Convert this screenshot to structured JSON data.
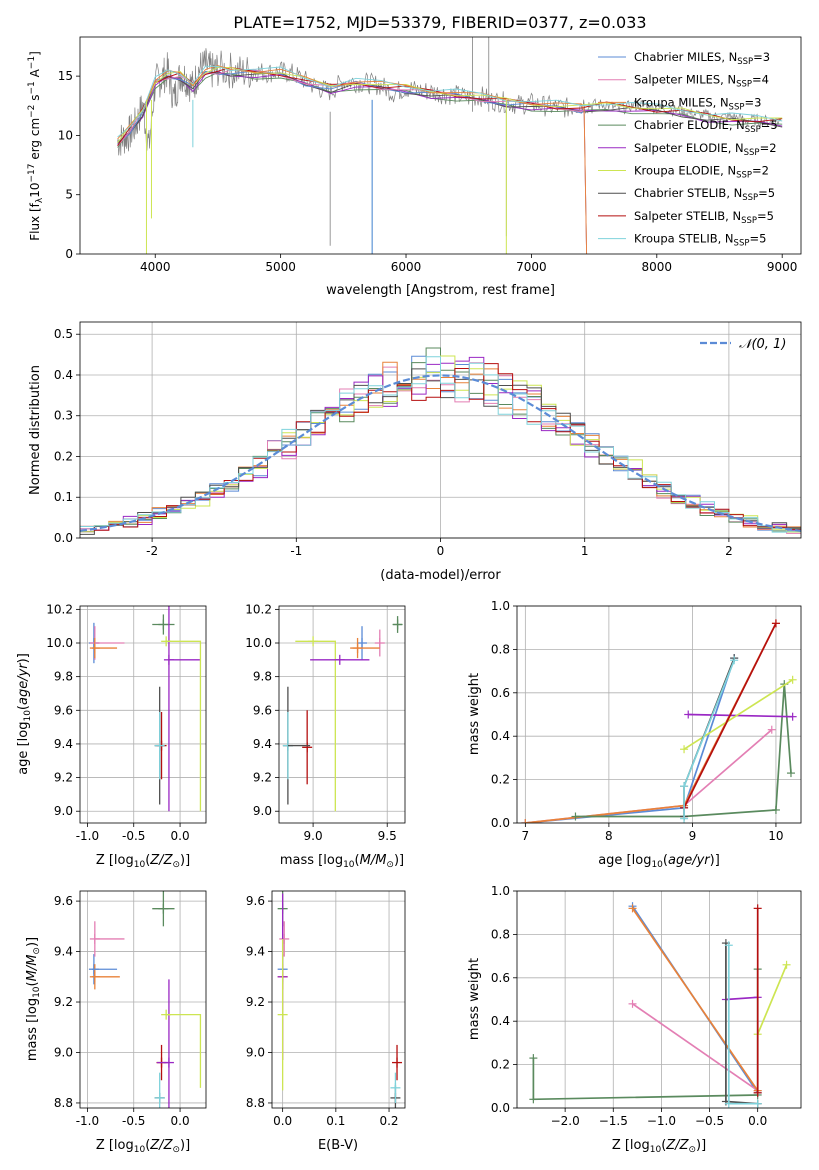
{
  "figure": {
    "title": "PLATE=1752, MJD=53379, FIBERID=0377, z=0.033"
  },
  "colors": {
    "chabrier_miles": "#5b8bd6",
    "salpeter_miles": "#e37fb4",
    "kroupa_miles": "#e8823a",
    "chabrier_elodie": "#5a8a5e",
    "salpeter_elodie": "#9a28c4",
    "kroupa_elodie": "#cde552",
    "chabrier_stelib": "#4f4f4f",
    "salpeter_stelib": "#b50f0f",
    "kroupa_stelib": "#7fd2db",
    "normal_curve": "#5b8bd6",
    "grid": "#b0b0b0"
  },
  "chart_data": [
    {
      "id": "spectrum",
      "type": "line",
      "title": "PLATE=1752, MJD=53379, FIBERID=0377, z=0.033",
      "xlabel": "wavelength [Angstrom, rest frame]",
      "ylabel": "Flux [f_λ10^-17 erg cm^-2 s^-1 A^-1]",
      "xlim": [
        3400,
        9150
      ],
      "ylim": [
        0,
        18.3
      ],
      "xticks": [
        4000,
        5000,
        6000,
        7000,
        8000,
        9000
      ],
      "yticks": [
        0,
        5,
        10,
        15
      ],
      "grid": false,
      "legend_position": "top-right",
      "legend": [
        {
          "label": "Chabrier MILES, N",
          "sub": "SSP",
          "value": "=3",
          "color": "chabrier_miles"
        },
        {
          "label": "Salpeter MILES, N",
          "sub": "SSP",
          "value": "=4",
          "color": "salpeter_miles"
        },
        {
          "label": "Kroupa MILES, N",
          "sub": "SSP",
          "value": "=3",
          "color": "kroupa_miles"
        },
        {
          "label": "Chabrier ELODIE, N",
          "sub": "SSP",
          "value": "=5",
          "color": "chabrier_elodie"
        },
        {
          "label": "Salpeter ELODIE, N",
          "sub": "SSP",
          "value": "=2",
          "color": "salpeter_elodie"
        },
        {
          "label": "Kroupa ELODIE, N",
          "sub": "SSP",
          "value": "=2",
          "color": "kroupa_elodie"
        },
        {
          "label": "Chabrier STELIB, N",
          "sub": "SSP",
          "value": "=5",
          "color": "chabrier_stelib"
        },
        {
          "label": "Salpeter STELIB, N",
          "sub": "SSP",
          "value": "=5",
          "color": "salpeter_stelib"
        },
        {
          "label": "Kroupa STELIB, N",
          "sub": "SSP",
          "value": "=5",
          "color": "kroupa_stelib"
        }
      ],
      "data_series": {
        "name": "data",
        "color": "#808080",
        "x": [
          3700,
          3750,
          3800,
          3850,
          3900,
          3950,
          4000,
          4050,
          4100,
          4150,
          4200,
          4250,
          4300,
          4350,
          4400,
          4450,
          4500,
          4600,
          4700,
          4800,
          4900,
          5000,
          5100,
          5200,
          5300,
          5400,
          5500,
          5600,
          5700,
          5800,
          5900,
          6000,
          6100,
          6200,
          6300,
          6400,
          6500,
          6600,
          6700,
          6800,
          6900,
          7000,
          7100,
          7200,
          7300,
          7400,
          7500,
          7600,
          7700,
          7800,
          7900,
          8000,
          8100,
          8200,
          8300,
          8400,
          8500,
          8600,
          8700,
          8800,
          8900,
          9000
        ],
        "y": [
          9.5,
          9.8,
          10.2,
          11.0,
          12.5,
          9.0,
          14.5,
          14.8,
          15.5,
          13.0,
          15.2,
          14.8,
          14.0,
          15.6,
          15.9,
          15.4,
          15.6,
          15.5,
          15.3,
          15.4,
          15.3,
          15.4,
          15.2,
          14.6,
          14.0,
          13.7,
          14.6,
          14.5,
          14.4,
          14.2,
          13.6,
          14.0,
          13.8,
          13.7,
          13.5,
          13.4,
          13.2,
          13.3,
          12.9,
          12.8,
          12.6,
          12.7,
          12.5,
          12.4,
          12.3,
          12.7,
          12.6,
          12.6,
          12.2,
          12.5,
          12.6,
          12.3,
          12.2,
          12.0,
          11.8,
          11.7,
          11.5,
          11.6,
          11.3,
          11.3,
          11.2,
          11.2
        ]
      },
      "model_series": {
        "name": "models",
        "x": [
          3700,
          3800,
          3900,
          4000,
          4100,
          4200,
          4300,
          4400,
          4500,
          4600,
          4800,
          5000,
          5200,
          5400,
          5600,
          5800,
          6000,
          6200,
          6400,
          6600,
          6800,
          7000,
          7200,
          7400,
          7600,
          7800,
          8000,
          8200,
          8400,
          8600,
          8800,
          9000
        ],
        "y": [
          9.3,
          10.5,
          12.0,
          14.5,
          15.0,
          15.0,
          14.2,
          15.3,
          15.4,
          15.4,
          15.3,
          15.2,
          14.5,
          14.0,
          14.4,
          14.1,
          13.9,
          13.6,
          13.4,
          13.1,
          12.8,
          12.6,
          12.4,
          12.2,
          12.5,
          12.4,
          12.1,
          11.9,
          11.6,
          11.4,
          11.2,
          11.1
        ]
      }
    },
    {
      "id": "residuals",
      "type": "line",
      "xlabel": "(data-model)/error",
      "ylabel": "Normed distribution",
      "xlim": [
        -2.5,
        2.5
      ],
      "ylim": [
        0,
        0.53
      ],
      "xticks": [
        -2,
        -1,
        0,
        1,
        2
      ],
      "yticks": [
        0.0,
        0.1,
        0.2,
        0.3,
        0.4,
        0.5
      ],
      "grid": true,
      "legend_position": "top-right",
      "legend": [
        {
          "label": "𝒩(0, 1)",
          "color": "normal_curve"
        }
      ],
      "bin_edges_start": -2.5,
      "bin_width": 0.1,
      "reference_curve": "gaussian mean 0 sigma 1",
      "series": [
        {
          "name": "Chabrier MILES",
          "color": "chabrier_miles"
        },
        {
          "name": "Salpeter MILES",
          "color": "salpeter_miles"
        },
        {
          "name": "Kroupa MILES",
          "color": "kroupa_miles"
        },
        {
          "name": "Chabrier ELODIE",
          "color": "chabrier_elodie"
        },
        {
          "name": "Salpeter ELODIE",
          "color": "salpeter_elodie"
        },
        {
          "name": "Kroupa ELODIE",
          "color": "kroupa_elodie"
        },
        {
          "name": "Chabrier STELIB",
          "color": "chabrier_stelib"
        },
        {
          "name": "Salpeter STELIB",
          "color": "salpeter_stelib"
        },
        {
          "name": "Kroupa STELIB",
          "color": "kroupa_stelib"
        }
      ]
    },
    {
      "id": "age-vs-Z",
      "type": "scatter",
      "xlabel": "Z [log10(Z/Z☉)]",
      "ylabel": "age  [log10(age/yr)]",
      "xlim": [
        -1.08,
        0.28
      ],
      "ylim": [
        8.93,
        10.22
      ],
      "xticks": [
        -1.0,
        -0.5,
        0.0
      ],
      "yticks": [
        9.0,
        9.2,
        9.4,
        9.6,
        9.8,
        10.0,
        10.2
      ],
      "grid": true,
      "points": [
        {
          "x": -0.93,
          "y": 10.0,
          "xerr": 0.0,
          "yerr": 0.12,
          "color": "chabrier_miles"
        },
        {
          "x": -0.92,
          "y": 10.0,
          "xerr": 0.0,
          "yerr": 0.1,
          "color": "salpeter_miles"
        },
        {
          "x": -0.92,
          "y": 9.97,
          "xerr": 0.0,
          "yerr": 0.06,
          "color": "kroupa_miles"
        },
        {
          "x": -0.18,
          "y": 10.11,
          "xerr": 0.12,
          "yerr": 0.06,
          "color": "chabrier_elodie"
        },
        {
          "x": -0.12,
          "y": 9.9,
          "xerr": 0.0,
          "yerr": 0.9,
          "color": "salpeter_elodie"
        },
        {
          "x": -0.15,
          "y": 10.01,
          "xerr": 0.0,
          "yerr": 0.0,
          "color": "kroupa_elodie"
        },
        {
          "x": -0.22,
          "y": 9.39,
          "xerr": 0.0,
          "yerr": 0.35,
          "color": "chabrier_stelib"
        },
        {
          "x": -0.2,
          "y": 9.39,
          "xerr": 0.0,
          "yerr": 0.2,
          "color": "salpeter_stelib"
        },
        {
          "x": -0.22,
          "y": 9.39,
          "xerr": 0.0,
          "yerr": 0.2,
          "color": "kroupa_stelib"
        }
      ]
    },
    {
      "id": "age-vs-mass",
      "type": "scatter",
      "xlabel": "mass [log10(M/M☉)]",
      "ylabel": "",
      "xlim": [
        8.77,
        9.62
      ],
      "ylim": [
        8.93,
        10.22
      ],
      "xticks": [
        9.0,
        9.5
      ],
      "yticks": [
        9.0,
        9.2,
        9.4,
        9.6,
        9.8,
        10.0,
        10.2
      ],
      "grid": true,
      "points": [
        {
          "x": 9.33,
          "y": 10.0,
          "xerr": 0.0,
          "yerr": 0.1,
          "color": "chabrier_miles"
        },
        {
          "x": 9.45,
          "y": 10.0,
          "xerr": 0.0,
          "yerr": 0.08,
          "color": "salpeter_miles"
        },
        {
          "x": 9.3,
          "y": 9.97,
          "xerr": 0.0,
          "yerr": 0.06,
          "color": "kroupa_miles"
        },
        {
          "x": 9.57,
          "y": 10.11,
          "xerr": 0.03,
          "yerr": 0.05,
          "color": "chabrier_elodie"
        },
        {
          "x": 9.18,
          "y": 9.9,
          "xerr": 0.0,
          "yerr": 0.0,
          "color": "salpeter_elodie"
        },
        {
          "x": 9.0,
          "y": 10.01,
          "xerr": 0.0,
          "yerr": 0.0,
          "color": "kroupa_elodie"
        },
        {
          "x": 8.83,
          "y": 9.39,
          "xerr": 0.0,
          "yerr": 0.35,
          "color": "chabrier_stelib"
        },
        {
          "x": 8.96,
          "y": 9.38,
          "xerr": 0.0,
          "yerr": 0.22,
          "color": "salpeter_stelib"
        },
        {
          "x": 8.83,
          "y": 9.39,
          "xerr": 0.0,
          "yerr": 0.2,
          "color": "kroupa_stelib"
        }
      ]
    },
    {
      "id": "weight-vs-age",
      "type": "line",
      "xlabel": "age  [log10(age/yr)]",
      "ylabel": "mass weight",
      "xlim": [
        6.9,
        10.3
      ],
      "ylim": [
        0,
        1.0
      ],
      "xticks": [
        7,
        8,
        9,
        10
      ],
      "yticks": [
        0.0,
        0.2,
        0.4,
        0.6,
        0.8,
        1.0
      ],
      "grid": true,
      "series": [
        {
          "name": "Chabrier MILES",
          "color": "chabrier_miles",
          "x": [
            7.0,
            8.9,
            9.5
          ],
          "y": [
            0.0,
            0.07,
            0.76
          ]
        },
        {
          "name": "Salpeter MILES",
          "color": "salpeter_miles",
          "x": [
            7.0,
            8.9,
            9.95
          ],
          "y": [
            0.0,
            0.08,
            0.43
          ]
        },
        {
          "name": "Kroupa MILES",
          "color": "kroupa_miles",
          "x": [
            7.0,
            8.9,
            10.0
          ],
          "y": [
            0.0,
            0.08,
            0.92
          ]
        },
        {
          "name": "Chabrier ELODIE",
          "color": "chabrier_elodie",
          "x": [
            7.6,
            8.9,
            10.0,
            10.1,
            10.18
          ],
          "y": [
            0.03,
            0.03,
            0.06,
            0.64,
            0.23
          ]
        },
        {
          "name": "Salpeter ELODIE",
          "color": "salpeter_elodie",
          "x": [
            8.95,
            10.2
          ],
          "y": [
            0.5,
            0.49
          ]
        },
        {
          "name": "Kroupa ELODIE",
          "color": "kroupa_elodie",
          "x": [
            8.9,
            10.2
          ],
          "y": [
            0.34,
            0.66
          ]
        },
        {
          "name": "Chabrier STELIB",
          "color": "chabrier_stelib",
          "x": [
            8.9,
            8.9,
            9.5
          ],
          "y": [
            0.03,
            0.17,
            0.76
          ]
        },
        {
          "name": "Salpeter STELIB",
          "color": "salpeter_stelib",
          "x": [
            8.9,
            10.0
          ],
          "y": [
            0.07,
            0.92
          ]
        },
        {
          "name": "Kroupa STELIB",
          "color": "kroupa_stelib",
          "x": [
            8.9,
            8.9,
            9.5
          ],
          "y": [
            0.02,
            0.17,
            0.75
          ]
        }
      ]
    },
    {
      "id": "mass-vs-Z",
      "type": "scatter",
      "xlabel": "Z [log10(Z/Z☉)]",
      "ylabel": "mass [log10(M/M☉)]",
      "xlim": [
        -1.08,
        0.28
      ],
      "ylim": [
        8.78,
        9.64
      ],
      "xticks": [
        -1.0,
        -0.5,
        0.0
      ],
      "yticks": [
        8.8,
        9.0,
        9.2,
        9.4,
        9.6
      ],
      "grid": true,
      "points": [
        {
          "x": -0.93,
          "y": 9.33,
          "xerr": 0.0,
          "yerr": 0.06,
          "color": "chabrier_miles"
        },
        {
          "x": -0.92,
          "y": 9.45,
          "xerr": 0.0,
          "yerr": 0.07,
          "color": "salpeter_miles"
        },
        {
          "x": -0.92,
          "y": 9.3,
          "xerr": 0.0,
          "yerr": 0.05,
          "color": "kroupa_miles"
        },
        {
          "x": -0.18,
          "y": 9.57,
          "xerr": 0.12,
          "yerr": 0.07,
          "color": "chabrier_elodie"
        },
        {
          "x": -0.12,
          "y": 8.96,
          "xerr": 0.0,
          "yerr": 0.33,
          "color": "salpeter_elodie"
        },
        {
          "x": -0.15,
          "y": 9.15,
          "xerr": 0.0,
          "yerr": 0.0,
          "color": "kroupa_elodie"
        },
        {
          "x": -0.22,
          "y": 8.82,
          "xerr": 0.0,
          "yerr": 0.0,
          "color": "chabrier_stelib"
        },
        {
          "x": -0.2,
          "y": 8.96,
          "xerr": 0.0,
          "yerr": 0.07,
          "color": "salpeter_stelib"
        },
        {
          "x": -0.22,
          "y": 8.82,
          "xerr": 0.0,
          "yerr": 0.1,
          "color": "kroupa_stelib"
        }
      ]
    },
    {
      "id": "mass-vs-ebv",
      "type": "scatter",
      "xlabel": "E(B-V)",
      "ylabel": "",
      "xlim": [
        -0.02,
        0.23
      ],
      "ylim": [
        8.78,
        9.64
      ],
      "xticks": [
        0.0,
        0.1,
        0.2
      ],
      "yticks": [
        8.8,
        9.0,
        9.2,
        9.4,
        9.6
      ],
      "grid": true,
      "points": [
        {
          "x": 0.0,
          "y": 9.33,
          "yerr": 0.06,
          "color": "chabrier_miles"
        },
        {
          "x": 0.003,
          "y": 9.45,
          "yerr": 0.07,
          "color": "salpeter_miles"
        },
        {
          "x": 0.0,
          "y": 9.3,
          "yerr": 0.05,
          "color": "kroupa_miles"
        },
        {
          "x": 0.0,
          "y": 9.57,
          "yerr": 0.07,
          "color": "chabrier_elodie"
        },
        {
          "x": 0.0,
          "y": 9.3,
          "yerr": 0.33,
          "color": "salpeter_elodie"
        },
        {
          "x": 0.0,
          "y": 9.15,
          "yerr": 0.3,
          "color": "kroupa_elodie"
        },
        {
          "x": 0.212,
          "y": 8.82,
          "yerr": 0.05,
          "color": "chabrier_stelib"
        },
        {
          "x": 0.215,
          "y": 8.96,
          "yerr": 0.07,
          "color": "salpeter_stelib"
        },
        {
          "x": 0.212,
          "y": 8.86,
          "yerr": 0.06,
          "color": "kroupa_stelib"
        }
      ]
    },
    {
      "id": "weight-vs-Z",
      "type": "line",
      "xlabel": "Z [log10(Z/Z☉)]",
      "ylabel": "mass weight",
      "xlim": [
        -2.5,
        0.45
      ],
      "ylim": [
        0,
        1.0
      ],
      "xticks": [
        -2.0,
        -1.5,
        -1.0,
        -0.5,
        0.0
      ],
      "yticks": [
        0.0,
        0.2,
        0.4,
        0.6,
        0.8,
        1.0
      ],
      "grid": true,
      "series": [
        {
          "name": "Chabrier MILES",
          "color": "chabrier_miles",
          "x": [
            -1.3,
            0.0
          ],
          "y": [
            0.93,
            0.07
          ]
        },
        {
          "name": "Salpeter MILES",
          "color": "salpeter_miles",
          "x": [
            -1.3,
            0.0
          ],
          "y": [
            0.48,
            0.08
          ]
        },
        {
          "name": "Kroupa MILES",
          "color": "kroupa_miles",
          "x": [
            -1.3,
            0.0
          ],
          "y": [
            0.92,
            0.08
          ]
        },
        {
          "name": "Chabrier ELODIE",
          "color": "chabrier_elodie",
          "x": [
            -2.33,
            -2.33,
            0.0,
            0.0
          ],
          "y": [
            0.23,
            0.04,
            0.06,
            0.64
          ]
        },
        {
          "name": "Salpeter ELODIE",
          "color": "salpeter_elodie",
          "x": [
            -0.33,
            0.0
          ],
          "y": [
            0.5,
            0.51
          ]
        },
        {
          "name": "Kroupa ELODIE",
          "color": "kroupa_elodie",
          "x": [
            0.0,
            0.3
          ],
          "y": [
            0.34,
            0.66
          ]
        },
        {
          "name": "Chabrier STELIB",
          "color": "chabrier_stelib",
          "x": [
            -0.33,
            -0.33,
            0.0
          ],
          "y": [
            0.76,
            0.03,
            0.02
          ]
        },
        {
          "name": "Salpeter STELIB",
          "color": "salpeter_stelib",
          "x": [
            0.0,
            0.0
          ],
          "y": [
            0.92,
            0.07
          ]
        },
        {
          "name": "Kroupa STELIB",
          "color": "kroupa_stelib",
          "x": [
            -0.3,
            -0.3,
            0.0
          ],
          "y": [
            0.75,
            0.02,
            0.02
          ]
        }
      ]
    }
  ]
}
